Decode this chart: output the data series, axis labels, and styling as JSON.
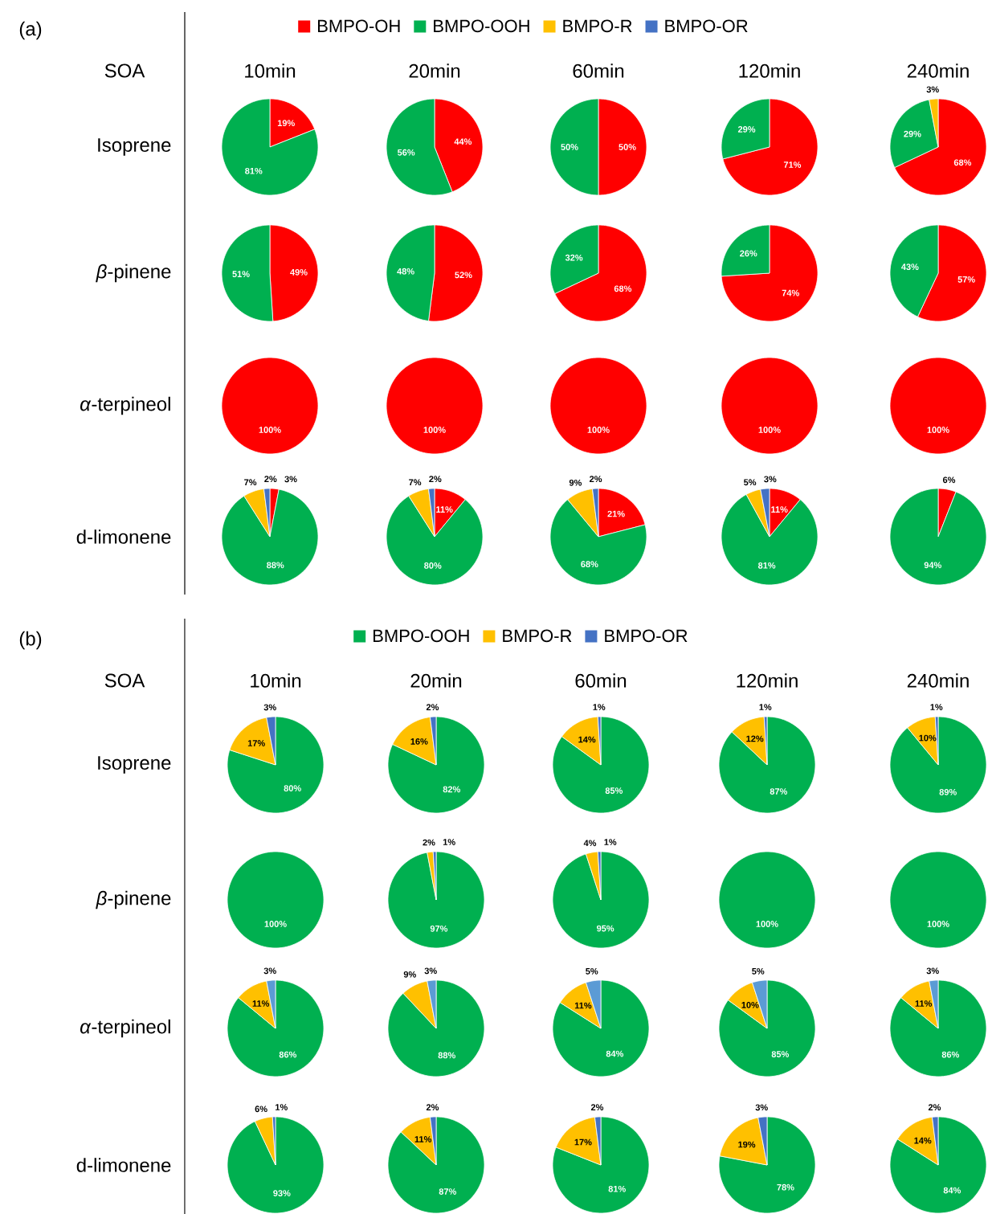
{
  "chart_data": [
    {
      "type": "pie",
      "title": "10min",
      "ylabel": "Isoprene",
      "legend": "top",
      "annotations": [
        "(a)",
        "SOA"
      ],
      "categories": [
        "BMPO-OH",
        "BMPO-OOH",
        "BMPO-R",
        "BMPO-OR"
      ],
      "colors": [
        "#ff0000",
        "#00b050",
        "#ffc000",
        "#4472c4"
      ],
      "values": [
        19,
        81,
        0,
        0
      ],
      "value_labels": [
        "19%",
        "81%",
        null,
        null
      ]
    },
    {
      "type": "pie",
      "title": "20min",
      "colors": [
        "#ff0000",
        "#00b050",
        "#ffc000",
        "#4472c4"
      ],
      "values": [
        44,
        56,
        0,
        0
      ],
      "value_labels": [
        "44%",
        "56%",
        null,
        null
      ]
    },
    {
      "type": "pie",
      "title": "60min",
      "colors": [
        "#ff0000",
        "#00b050",
        "#ffc000",
        "#4472c4"
      ],
      "values": [
        50,
        50,
        0,
        0
      ],
      "value_labels": [
        "50%",
        "50%",
        null,
        null
      ]
    },
    {
      "type": "pie",
      "title": "120min",
      "colors": [
        "#ff0000",
        "#00b050",
        "#ffc000",
        "#4472c4"
      ],
      "values": [
        71,
        29,
        0,
        0
      ],
      "value_labels": [
        "71%",
        "29%",
        null,
        null
      ]
    },
    {
      "type": "pie",
      "title": "240min",
      "colors": [
        "#ff0000",
        "#00b050",
        "#ffc000",
        "#4472c4"
      ],
      "values": [
        68,
        29,
        3,
        0
      ],
      "value_labels": [
        "68%",
        "29%",
        "3%",
        null
      ]
    },
    {
      "type": "pie",
      "ylabel": "*β*-pinene",
      "colors": [
        "#ff0000",
        "#00b050",
        "#ffc000",
        "#4472c4"
      ],
      "values": [
        49,
        51,
        0,
        0
      ],
      "value_labels": [
        "49%",
        "51%",
        null,
        null
      ]
    },
    {
      "type": "pie",
      "colors": [
        "#ff0000",
        "#00b050",
        "#ffc000",
        "#4472c4"
      ],
      "values": [
        52,
        48,
        0,
        0
      ],
      "value_labels": [
        "52%",
        "48%",
        null,
        null
      ]
    },
    {
      "type": "pie",
      "colors": [
        "#ff0000",
        "#00b050",
        "#ffc000",
        "#4472c4"
      ],
      "values": [
        68,
        32,
        0,
        0
      ],
      "value_labels": [
        "68%",
        "32%",
        null,
        null
      ]
    },
    {
      "type": "pie",
      "colors": [
        "#ff0000",
        "#00b050",
        "#ffc000",
        "#4472c4"
      ],
      "values": [
        74,
        26,
        0,
        0
      ],
      "value_labels": [
        "74%",
        "26%",
        null,
        null
      ]
    },
    {
      "type": "pie",
      "colors": [
        "#ff0000",
        "#00b050",
        "#ffc000",
        "#4472c4"
      ],
      "values": [
        57,
        43,
        0,
        0
      ],
      "value_labels": [
        "57%",
        "43%",
        null,
        null
      ]
    },
    {
      "type": "pie",
      "ylabel": "*α*-terpineol",
      "colors": [
        "#ff0000",
        "#00b050",
        "#ffc000",
        "#4472c4"
      ],
      "values": [
        100,
        0,
        0,
        0
      ],
      "value_labels": [
        "100%",
        null,
        null,
        null
      ]
    },
    {
      "type": "pie",
      "colors": [
        "#ff0000",
        "#00b050",
        "#ffc000",
        "#4472c4"
      ],
      "values": [
        100,
        0,
        0,
        0
      ],
      "value_labels": [
        "100%",
        null,
        null,
        null
      ]
    },
    {
      "type": "pie",
      "colors": [
        "#ff0000",
        "#00b050",
        "#ffc000",
        "#4472c4"
      ],
      "values": [
        100,
        0,
        0,
        0
      ],
      "value_labels": [
        "100%",
        null,
        null,
        null
      ]
    },
    {
      "type": "pie",
      "colors": [
        "#ff0000",
        "#00b050",
        "#ffc000",
        "#4472c4"
      ],
      "values": [
        100,
        0,
        0,
        0
      ],
      "value_labels": [
        "100%",
        null,
        null,
        null
      ]
    },
    {
      "type": "pie",
      "colors": [
        "#ff0000",
        "#00b050",
        "#ffc000",
        "#4472c4"
      ],
      "values": [
        100,
        0,
        0,
        0
      ],
      "value_labels": [
        "100%",
        null,
        null,
        null
      ]
    },
    {
      "type": "pie",
      "ylabel": "d-limonene",
      "colors": [
        "#ff0000",
        "#00b050",
        "#ffc000",
        "#4472c4"
      ],
      "values": [
        3,
        88,
        7,
        2
      ],
      "value_labels": [
        "3%",
        "88%",
        "7%",
        "2%"
      ]
    },
    {
      "type": "pie",
      "colors": [
        "#ff0000",
        "#00b050",
        "#ffc000",
        "#4472c4"
      ],
      "values": [
        11,
        80,
        7,
        2
      ],
      "value_labels": [
        "11%",
        "80%",
        "7%",
        "2%"
      ]
    },
    {
      "type": "pie",
      "colors": [
        "#ff0000",
        "#00b050",
        "#ffc000",
        "#4472c4"
      ],
      "values": [
        21,
        68,
        9,
        2
      ],
      "value_labels": [
        "21%",
        "68%",
        "9%",
        "2%"
      ]
    },
    {
      "type": "pie",
      "colors": [
        "#ff0000",
        "#00b050",
        "#ffc000",
        "#4472c4"
      ],
      "values": [
        11,
        81,
        5,
        3
      ],
      "value_labels": [
        "11%",
        "81%",
        "5%",
        "3%"
      ]
    },
    {
      "type": "pie",
      "colors": [
        "#ff0000",
        "#00b050",
        "#ffc000",
        "#4472c4"
      ],
      "values": [
        6,
        94,
        0,
        0
      ],
      "value_labels": [
        "6%",
        "94%",
        null,
        null
      ]
    },
    {
      "type": "pie",
      "title": "10min",
      "ylabel": "Isoprene",
      "legend": "top",
      "annotations": [
        "(b)",
        "SOA"
      ],
      "categories": [
        "BMPO-OOH",
        "BMPO-R",
        "BMPO-OR"
      ],
      "colors": [
        "#00b050",
        "#ffc000",
        "#4472c4"
      ],
      "values": [
        80,
        17,
        3
      ],
      "value_labels": [
        "80%",
        "17%",
        "3%"
      ]
    },
    {
      "type": "pie",
      "title": "20min",
      "colors": [
        "#00b050",
        "#ffc000",
        "#4472c4"
      ],
      "values": [
        82,
        16,
        2
      ],
      "value_labels": [
        "82%",
        "16%",
        "2%"
      ]
    },
    {
      "type": "pie",
      "title": "60min",
      "colors": [
        "#00b050",
        "#ffc000",
        "#4472c4"
      ],
      "values": [
        85,
        14,
        1
      ],
      "value_labels": [
        "85%",
        "14%",
        "1%"
      ]
    },
    {
      "type": "pie",
      "title": "120min",
      "colors": [
        "#00b050",
        "#ffc000",
        "#4472c4"
      ],
      "values": [
        87,
        12,
        1
      ],
      "value_labels": [
        "87%",
        "12%",
        "1%"
      ]
    },
    {
      "type": "pie",
      "title": "240min",
      "colors": [
        "#00b050",
        "#ffc000",
        "#4472c4"
      ],
      "values": [
        89,
        10,
        1
      ],
      "value_labels": [
        "89%",
        "10%",
        "1%"
      ]
    },
    {
      "type": "pie",
      "ylabel": "*β*-pinene",
      "colors": [
        "#00b050",
        "#ffc000",
        "#4472c4"
      ],
      "values": [
        100,
        0,
        0
      ],
      "value_labels": [
        "100%",
        null,
        null
      ]
    },
    {
      "type": "pie",
      "colors": [
        "#00b050",
        "#ffc000",
        "#4472c4"
      ],
      "values": [
        97,
        2,
        1
      ],
      "value_labels": [
        "97%",
        "2%",
        "1%"
      ]
    },
    {
      "type": "pie",
      "colors": [
        "#00b050",
        "#ffc000",
        "#4472c4"
      ],
      "values": [
        95,
        4,
        1
      ],
      "value_labels": [
        "95%",
        "4%",
        "1%"
      ]
    },
    {
      "type": "pie",
      "colors": [
        "#00b050",
        "#ffc000",
        "#4472c4"
      ],
      "values": [
        100,
        0,
        0
      ],
      "value_labels": [
        "100%",
        null,
        null
      ]
    },
    {
      "type": "pie",
      "colors": [
        "#00b050",
        "#ffc000",
        "#4472c4"
      ],
      "values": [
        100,
        0,
        0
      ],
      "value_labels": [
        "100%",
        null,
        null
      ]
    },
    {
      "type": "pie",
      "ylabel": "*α*-terpineol",
      "colors": [
        "#00b050",
        "#ffc000",
        "#5b9bd5"
      ],
      "values": [
        86,
        11,
        3
      ],
      "value_labels": [
        "86%",
        "11%",
        "3%"
      ]
    },
    {
      "type": "pie",
      "colors": [
        "#00b050",
        "#ffc000",
        "#5b9bd5"
      ],
      "values": [
        88,
        9,
        3
      ],
      "value_labels": [
        "88%",
        "9%",
        "3%"
      ]
    },
    {
      "type": "pie",
      "colors": [
        "#00b050",
        "#ffc000",
        "#5b9bd5"
      ],
      "values": [
        84,
        11,
        5
      ],
      "value_labels": [
        "84%",
        "11%",
        "5%"
      ]
    },
    {
      "type": "pie",
      "colors": [
        "#00b050",
        "#ffc000",
        "#5b9bd5"
      ],
      "values": [
        85,
        10,
        5
      ],
      "value_labels": [
        "85%",
        "10%",
        "5%"
      ]
    },
    {
      "type": "pie",
      "colors": [
        "#00b050",
        "#ffc000",
        "#5b9bd5"
      ],
      "values": [
        86,
        11,
        3
      ],
      "value_labels": [
        "86%",
        "11%",
        "3%"
      ]
    },
    {
      "type": "pie",
      "ylabel": "d-limonene",
      "colors": [
        "#00b050",
        "#ffc000",
        "#4472c4"
      ],
      "values": [
        93,
        6,
        1
      ],
      "value_labels": [
        "93%",
        "6%",
        "1%"
      ]
    },
    {
      "type": "pie",
      "colors": [
        "#00b050",
        "#ffc000",
        "#4472c4"
      ],
      "values": [
        87,
        11,
        2
      ],
      "value_labels": [
        "87%",
        "11%",
        "2%"
      ]
    },
    {
      "type": "pie",
      "colors": [
        "#00b050",
        "#ffc000",
        "#4472c4"
      ],
      "values": [
        81,
        17,
        2
      ],
      "value_labels": [
        "81%",
        "17%",
        "2%"
      ]
    },
    {
      "type": "pie",
      "colors": [
        "#00b050",
        "#ffc000",
        "#4472c4"
      ],
      "values": [
        78,
        19,
        3
      ],
      "value_labels": [
        "78%",
        "19%",
        "3%"
      ]
    },
    {
      "type": "pie",
      "colors": [
        "#00b050",
        "#ffc000",
        "#4472c4"
      ],
      "values": [
        84,
        14,
        2
      ],
      "value_labels": [
        "84%",
        "14%",
        "2%"
      ]
    }
  ]
}
